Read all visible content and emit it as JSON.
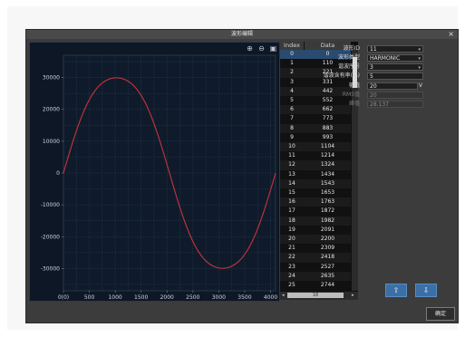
{
  "window": {
    "title": "波形编辑",
    "close_label": "×",
    "ok_label": "确定"
  },
  "toolbar": {
    "zoom_in_icon": "zoom-in-icon",
    "zoom_out_icon": "zoom-out-icon",
    "save_icon": "camera-icon"
  },
  "table": {
    "headers": [
      "Index",
      "Data"
    ],
    "rows": [
      [
        "0",
        "0"
      ],
      [
        "1",
        "110"
      ],
      [
        "2",
        "221"
      ],
      [
        "3",
        "331"
      ],
      [
        "4",
        "442"
      ],
      [
        "5",
        "552"
      ],
      [
        "6",
        "662"
      ],
      [
        "7",
        "773"
      ],
      [
        "8",
        "883"
      ],
      [
        "9",
        "993"
      ],
      [
        "10",
        "1104"
      ],
      [
        "11",
        "1214"
      ],
      [
        "12",
        "1324"
      ],
      [
        "13",
        "1434"
      ],
      [
        "14",
        "1543"
      ],
      [
        "15",
        "1653"
      ],
      [
        "16",
        "1763"
      ],
      [
        "17",
        "1872"
      ],
      [
        "18",
        "1982"
      ],
      [
        "19",
        "2091"
      ],
      [
        "20",
        "2200"
      ],
      [
        "21",
        "2309"
      ],
      [
        "22",
        "2418"
      ],
      [
        "23",
        "2527"
      ],
      [
        "24",
        "2635"
      ],
      [
        "25",
        "2744"
      ]
    ],
    "scroll_label": "18"
  },
  "params": [
    {
      "label": "波形ID",
      "value": "11",
      "dropdown": true,
      "enabled": true
    },
    {
      "label": "波形类型",
      "value": "HARMONIC",
      "dropdown": true,
      "enabled": true
    },
    {
      "label": "谐波序号",
      "value": "3",
      "dropdown": true,
      "enabled": true
    },
    {
      "label": "谐波含有率(%)",
      "value": "5",
      "dropdown": false,
      "enabled": true
    },
    {
      "label": "幅值",
      "value": "20",
      "dropdown": false,
      "enabled": true,
      "unit": "V"
    },
    {
      "label": "RMS值",
      "value": "20",
      "dropdown": false,
      "enabled": false
    },
    {
      "label": "峰值",
      "value": "28.137",
      "dropdown": false,
      "enabled": false
    }
  ],
  "buttons": {
    "up_label": "⇧",
    "down_label": "⇩"
  },
  "chart_data": {
    "type": "line",
    "xlim": [
      0,
      4096
    ],
    "ylim": [
      -37000,
      37000
    ],
    "xticks": [
      0,
      500,
      1000,
      1500,
      2000,
      2500,
      3000,
      3500,
      4000
    ],
    "xtick_labels": [
      "0(0)",
      "500",
      "1000",
      "1500",
      "2000",
      "2500",
      "3000",
      "3500",
      "4000"
    ],
    "yticks": [
      30000,
      20000,
      10000,
      0,
      -10000,
      -20000,
      -30000
    ],
    "ytick_labels": [
      "30000",
      "20000",
      "10000",
      "0",
      "-10000",
      "-20000",
      "-30000"
    ],
    "series": [
      {
        "fundamental_amplitude": 31500,
        "harmonic_order": 3,
        "harmonic_ratio": 0.05
      }
    ],
    "line_color": "#c7343d",
    "grid": true
  }
}
